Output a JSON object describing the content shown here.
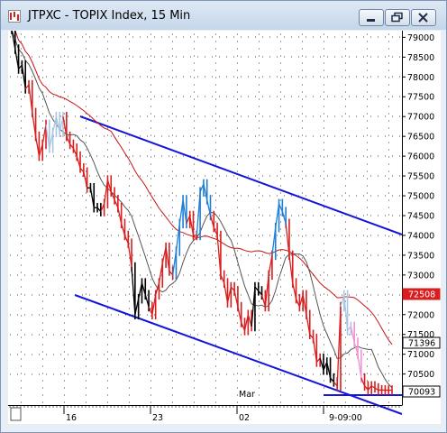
{
  "window": {
    "title": "JTPXC - TOPIX Index, 15 Min",
    "buttons": [
      "minimize",
      "restore",
      "close"
    ]
  },
  "chart_data": {
    "type": "line",
    "title": "JTPXC - TOPIX Index, 15 Min",
    "ylim": [
      6990,
      79350
    ],
    "y_ticks": [
      79000,
      78500,
      78000,
      77500,
      77000,
      76500,
      76000,
      75500,
      75000,
      74500,
      74000,
      73500,
      73000,
      72500,
      72000,
      71500,
      71000,
      70500
    ],
    "y_tick_labels": [
      "79000",
      "78500",
      "78000",
      "77500",
      "77000",
      "76500",
      "76000",
      "75500",
      "75000",
      "74500",
      "74000",
      "73500",
      "73000",
      "72500",
      "72000",
      "71500",
      "71000",
      "70500"
    ],
    "x_labels": [
      "16",
      "23",
      "Mar",
      "02",
      "9-09:00"
    ],
    "price_markers": [
      {
        "label": "72508",
        "value": 72508,
        "color": "#d81e1e"
      },
      {
        "label": "71396",
        "value": 71396,
        "color": "#ffffff"
      },
      {
        "label": "70093",
        "value": 70093,
        "color": "#ffffff"
      }
    ],
    "series": [
      {
        "style": "price",
        "x": [
          0,
          1,
          2,
          3,
          4,
          5,
          6,
          7,
          8,
          9,
          10,
          11,
          12,
          13,
          14,
          15,
          16,
          17,
          18,
          19,
          20,
          21,
          22,
          23,
          24,
          25,
          26,
          27,
          28,
          29,
          30,
          31,
          32,
          33,
          34,
          35,
          36,
          37,
          38,
          39,
          40,
          41,
          42,
          43,
          44,
          45,
          46,
          47,
          48,
          49,
          50,
          51,
          52,
          53,
          54,
          55,
          56,
          57,
          58,
          59,
          60,
          61,
          62,
          63,
          64,
          65,
          66,
          67,
          68,
          69,
          70,
          71,
          72,
          73,
          74,
          75,
          76,
          77,
          78,
          79,
          80,
          81,
          82,
          83,
          84,
          85,
          86,
          87,
          88,
          89,
          90,
          91,
          92,
          93,
          94,
          95,
          96,
          97,
          98,
          99,
          100,
          101,
          102,
          103,
          104,
          105,
          106,
          107,
          108,
          109,
          110,
          111,
          112,
          113,
          114,
          115,
          116,
          117,
          118,
          119,
          120,
          121,
          122,
          123,
          124,
          125,
          126,
          127,
          128,
          129,
          130,
          131,
          132,
          133,
          134,
          135,
          136,
          137,
          138,
          139,
          140
        ],
        "values": [
          79200,
          78700,
          78200,
          78300,
          77700,
          77800,
          77100,
          76500,
          76000,
          76300,
          76800,
          76200,
          76600,
          77000,
          76600,
          77000,
          76500,
          76300,
          76200,
          76000,
          75700,
          75600,
          75200,
          75200,
          74700,
          74700,
          74600,
          74800,
          75400,
          75100,
          74900,
          74700,
          74300,
          74000,
          73800,
          73200,
          72000,
          72400,
          72800,
          72500,
          72200,
          72000,
          72500,
          72800,
          73300,
          73700,
          73100,
          73000,
          73600,
          74300,
          74900,
          74300,
          74500,
          74000,
          74000,
          75100,
          75300,
          74900,
          74500,
          74200,
          74000,
          73000,
          72800,
          72300,
          72700,
          72600,
          72200,
          71800,
          71600,
          72000,
          71700,
          72700,
          72600,
          72500,
          72200,
          73000,
          73500,
          74200,
          74800,
          74600,
          74300,
          73500,
          72800,
          72400,
          72200,
          72500,
          72000,
          71500,
          71400,
          70800,
          70900,
          70600,
          70800,
          70400,
          70300,
          70200,
          72200,
          72500,
          71600,
          71700,
          71300,
          71000,
          70400,
          70200,
          70100,
          70200,
          70150,
          70093,
          70100,
          70093,
          70093,
          70093,
          70093,
          70093,
          70093,
          70093,
          70093,
          70093,
          70093,
          70093,
          70093,
          70093,
          70093,
          70093,
          70093,
          70093,
          70093,
          70093,
          70093,
          70093,
          70093,
          70093,
          70093,
          70093,
          70093,
          70093,
          70093,
          70093,
          70093,
          70093,
          70093
        ]
      }
    ]
  }
}
